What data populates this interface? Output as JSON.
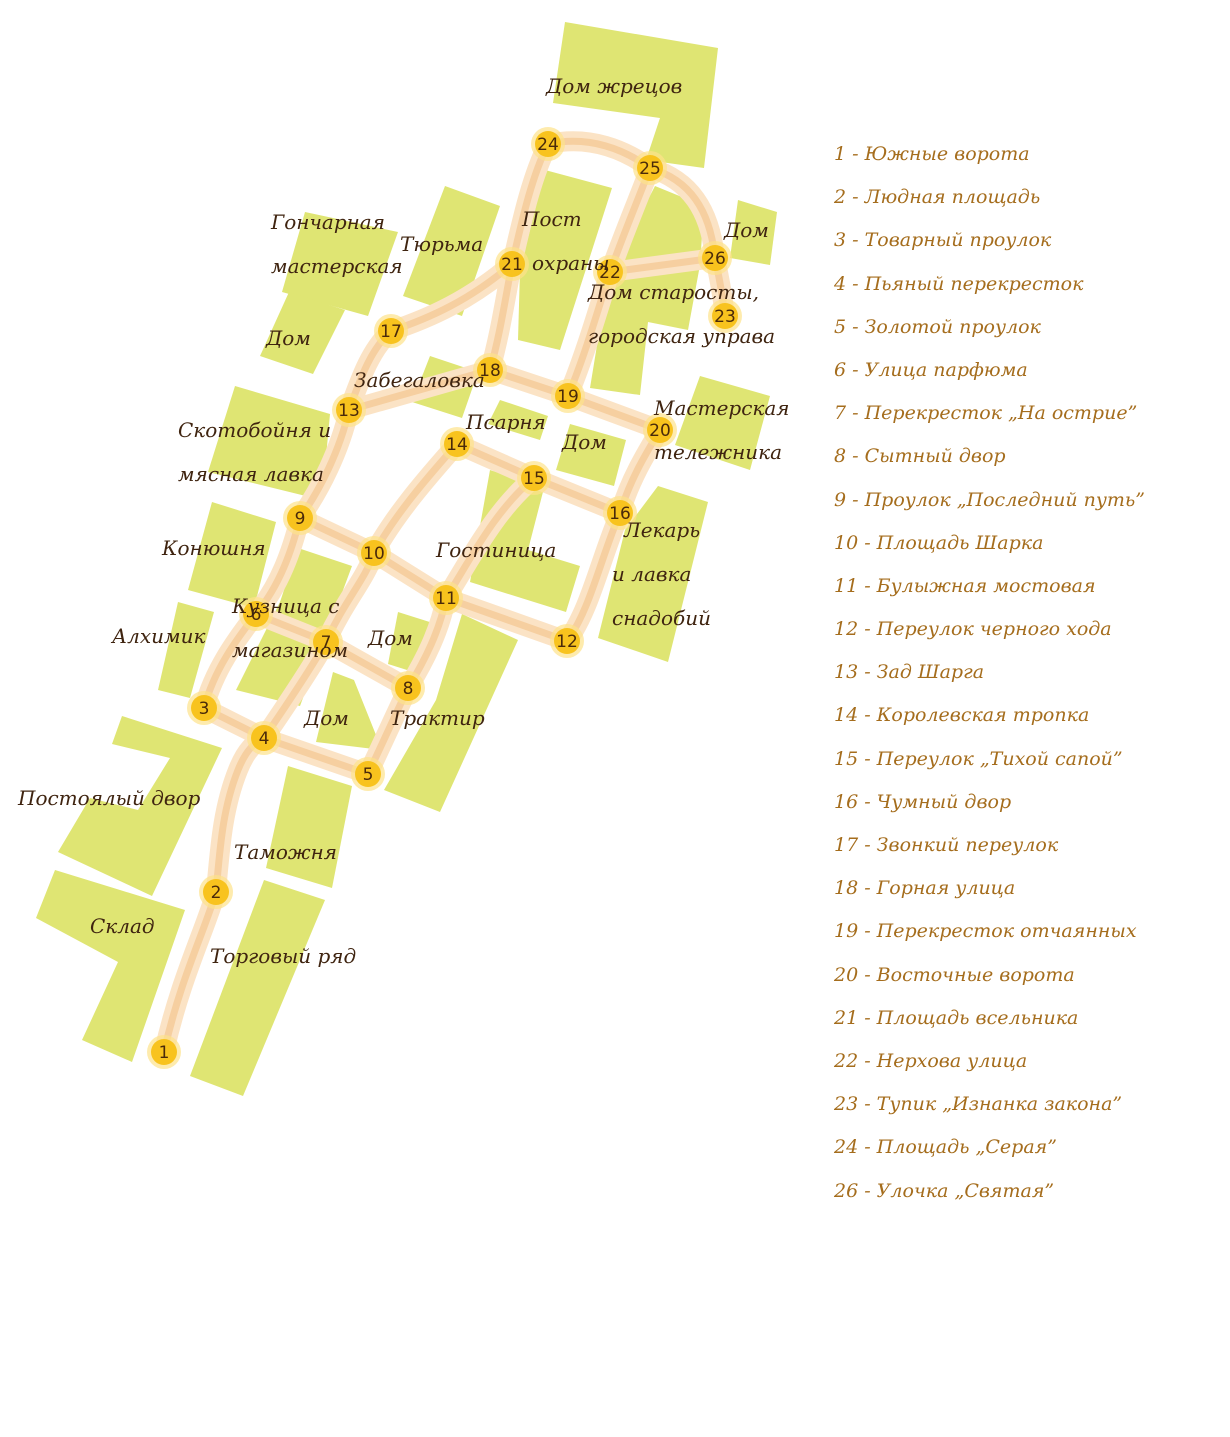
{
  "colors": {
    "building": "#dfe573",
    "road": "#f6cfa0",
    "road_glow": "#fbe3c5",
    "node": "#f8c31e",
    "label": "#3f2410",
    "legend": "#a56d1d"
  },
  "intersections": [
    {
      "id": 1,
      "label": "1"
    },
    {
      "id": 2,
      "label": "2"
    },
    {
      "id": 3,
      "label": "3"
    },
    {
      "id": 4,
      "label": "4"
    },
    {
      "id": 5,
      "label": "5"
    },
    {
      "id": 6,
      "label": "6"
    },
    {
      "id": 7,
      "label": "7"
    },
    {
      "id": 8,
      "label": "8"
    },
    {
      "id": 9,
      "label": "9"
    },
    {
      "id": 10,
      "label": "10"
    },
    {
      "id": 11,
      "label": "11"
    },
    {
      "id": 12,
      "label": "12"
    },
    {
      "id": 13,
      "label": "13"
    },
    {
      "id": 14,
      "label": "14"
    },
    {
      "id": 15,
      "label": "15"
    },
    {
      "id": 16,
      "label": "16"
    },
    {
      "id": 17,
      "label": "17"
    },
    {
      "id": 18,
      "label": "18"
    },
    {
      "id": 19,
      "label": "19"
    },
    {
      "id": 20,
      "label": "20"
    },
    {
      "id": 21,
      "label": "21"
    },
    {
      "id": 22,
      "label": "22"
    },
    {
      "id": 23,
      "label": "23"
    },
    {
      "id": 24,
      "label": "24"
    },
    {
      "id": 25,
      "label": "25"
    },
    {
      "id": 26,
      "label": "26"
    }
  ],
  "places": {
    "dom_zhretsov": "Дом жрецов",
    "goncharnaya": [
      "Гончарная",
      "мастерская"
    ],
    "tyurma": "Тюрьма",
    "post_ohrany": [
      "Пост",
      "охраны"
    ],
    "dom_east": "Дом",
    "dom_starosty": [
      "Дом старосты,",
      "городская управа"
    ],
    "dom_west": "Дом",
    "zabegalovka": "Забегаловка",
    "psarnya": "Псарня",
    "dom_center": "Дом",
    "masterskaya": [
      "Мастерская",
      "тележника"
    ],
    "skotoboynya": [
      "Скотобойня и",
      "мясная лавка"
    ],
    "konyushnya": "Конюшня",
    "gostinitsa": "Гостиница",
    "lekar": [
      "Лекарь",
      "и лавка",
      "снадобий"
    ],
    "kuznitsa": [
      "Кузница с",
      "магазином"
    ],
    "alhimik": "Алхимик",
    "dom_mid": "Дом",
    "dom_low": "Дом",
    "traktir": "Трактир",
    "postoyaly": "Постоялый двор",
    "tamozhnya": "Таможня",
    "sklad": "Склад",
    "torgovy": "Торговый ряд"
  },
  "legend": [
    "1 - Южные ворота",
    "2 - Людная площадь",
    "3 - Товарный проулок",
    "4 - Пьяный перекресток",
    "5 - Золотой проулок",
    "6 - Улица парфюма",
    "7 - Перекресток „На острие”",
    "8 - Сытный двор",
    "9 - Проулок „Последний путь”",
    "10 - Площадь Шарка",
    "11 - Булыжная мостовая",
    "12 - Переулок черного хода",
    "13 - Зад Шарга",
    "14 - Королевская тропка",
    "15 - Переулок „Тихой сапой”",
    "16 - Чумный двор",
    "17 - Звонкий переулок",
    "18 - Горная улица",
    "19 - Перекресток отчаянных",
    "20 - Восточные ворота",
    "21 - Площадь всельника",
    "22 - Нерхова улица",
    "23 - Тупик „Изнанка закона”",
    "24 - Площадь „Серая”",
    "26 - Улочка „Святая”"
  ]
}
